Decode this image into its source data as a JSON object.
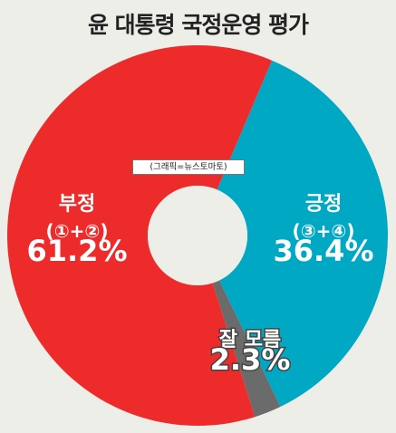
{
  "title": "윤 대통령 국정운영 평가",
  "credit": "(그래픽=뉴스토마토)",
  "chart_data": {
    "type": "pie",
    "donut": true,
    "title": "윤 대통령 국정운영 평가",
    "slices": [
      {
        "label": "긍정",
        "sublabel": "(③+④)",
        "value": 36.4,
        "value_label": "36.4%",
        "color": "#00a8c3"
      },
      {
        "label": "잘 모름",
        "sublabel": "",
        "value": 2.3,
        "value_label": "2.3%",
        "color": "#6b6b6b"
      },
      {
        "label": "부정",
        "sublabel": "(①+②)",
        "value": 61.2,
        "value_label": "61.2%",
        "color": "#ee2b2b"
      }
    ]
  }
}
